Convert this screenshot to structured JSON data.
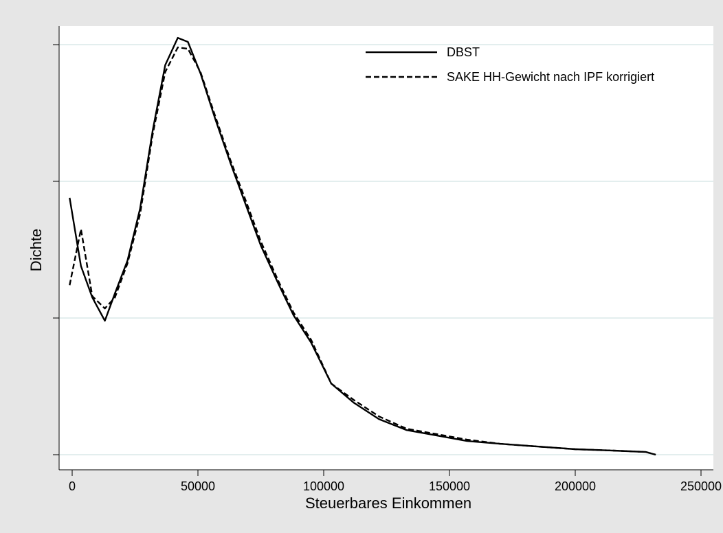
{
  "chart_data": {
    "type": "line",
    "title": "",
    "xlabel": "Steuerbares Einkommen",
    "ylabel": "Dichte",
    "xlim": [
      -3000,
      250000
    ],
    "ylim": [
      0,
      3
    ],
    "x_ticks": [
      0,
      50000,
      100000,
      150000,
      200000,
      250000
    ],
    "x_tick_labels": [
      "0",
      "50000",
      "100000",
      "150000",
      "200000",
      "250000"
    ],
    "y_ticks": [
      0,
      1,
      2,
      3
    ],
    "y_tick_labels": [
      "",
      "",
      "",
      ""
    ],
    "grid": "horizontal",
    "legend_position": "top-right",
    "series": [
      {
        "name": "DBST",
        "style": "solid",
        "color": "#000000",
        "points": [
          [
            -1000,
            1.88
          ],
          [
            3500,
            1.38
          ],
          [
            8000,
            1.15
          ],
          [
            13000,
            0.98
          ],
          [
            17000,
            1.18
          ],
          [
            22000,
            1.42
          ],
          [
            27000,
            1.8
          ],
          [
            32000,
            2.37
          ],
          [
            37000,
            2.85
          ],
          [
            42000,
            3.05
          ],
          [
            46000,
            3.02
          ],
          [
            51000,
            2.79
          ],
          [
            57000,
            2.45
          ],
          [
            63000,
            2.13
          ],
          [
            69000,
            1.83
          ],
          [
            75000,
            1.53
          ],
          [
            82000,
            1.25
          ],
          [
            88000,
            1.02
          ],
          [
            95000,
            0.82
          ],
          [
            103000,
            0.52
          ],
          [
            112000,
            0.38
          ],
          [
            122000,
            0.26
          ],
          [
            133000,
            0.18
          ],
          [
            145000,
            0.14
          ],
          [
            157000,
            0.1
          ],
          [
            170000,
            0.08
          ],
          [
            185000,
            0.06
          ],
          [
            200000,
            0.04
          ],
          [
            215000,
            0.03
          ],
          [
            228000,
            0.02
          ],
          [
            232000,
            0.0
          ]
        ]
      },
      {
        "name": "SAKE HH-Gewicht nach IPF korrigiert",
        "style": "dashed",
        "color": "#000000",
        "points": [
          [
            -1000,
            1.24
          ],
          [
            3500,
            1.65
          ],
          [
            8000,
            1.16
          ],
          [
            13000,
            1.07
          ],
          [
            17000,
            1.15
          ],
          [
            22000,
            1.4
          ],
          [
            27000,
            1.76
          ],
          [
            32000,
            2.34
          ],
          [
            37000,
            2.8
          ],
          [
            42000,
            2.98
          ],
          [
            46000,
            2.97
          ],
          [
            51000,
            2.8
          ],
          [
            57000,
            2.47
          ],
          [
            63000,
            2.15
          ],
          [
            69000,
            1.86
          ],
          [
            75000,
            1.56
          ],
          [
            82000,
            1.27
          ],
          [
            88000,
            1.04
          ],
          [
            95000,
            0.84
          ],
          [
            103000,
            0.52
          ],
          [
            112000,
            0.4
          ],
          [
            122000,
            0.28
          ],
          [
            133000,
            0.19
          ],
          [
            145000,
            0.15
          ],
          [
            157000,
            0.11
          ],
          [
            170000,
            0.08
          ],
          [
            185000,
            0.06
          ],
          [
            200000,
            0.04
          ],
          [
            215000,
            0.03
          ],
          [
            228000,
            0.02
          ],
          [
            232000,
            0.0
          ]
        ]
      }
    ]
  }
}
